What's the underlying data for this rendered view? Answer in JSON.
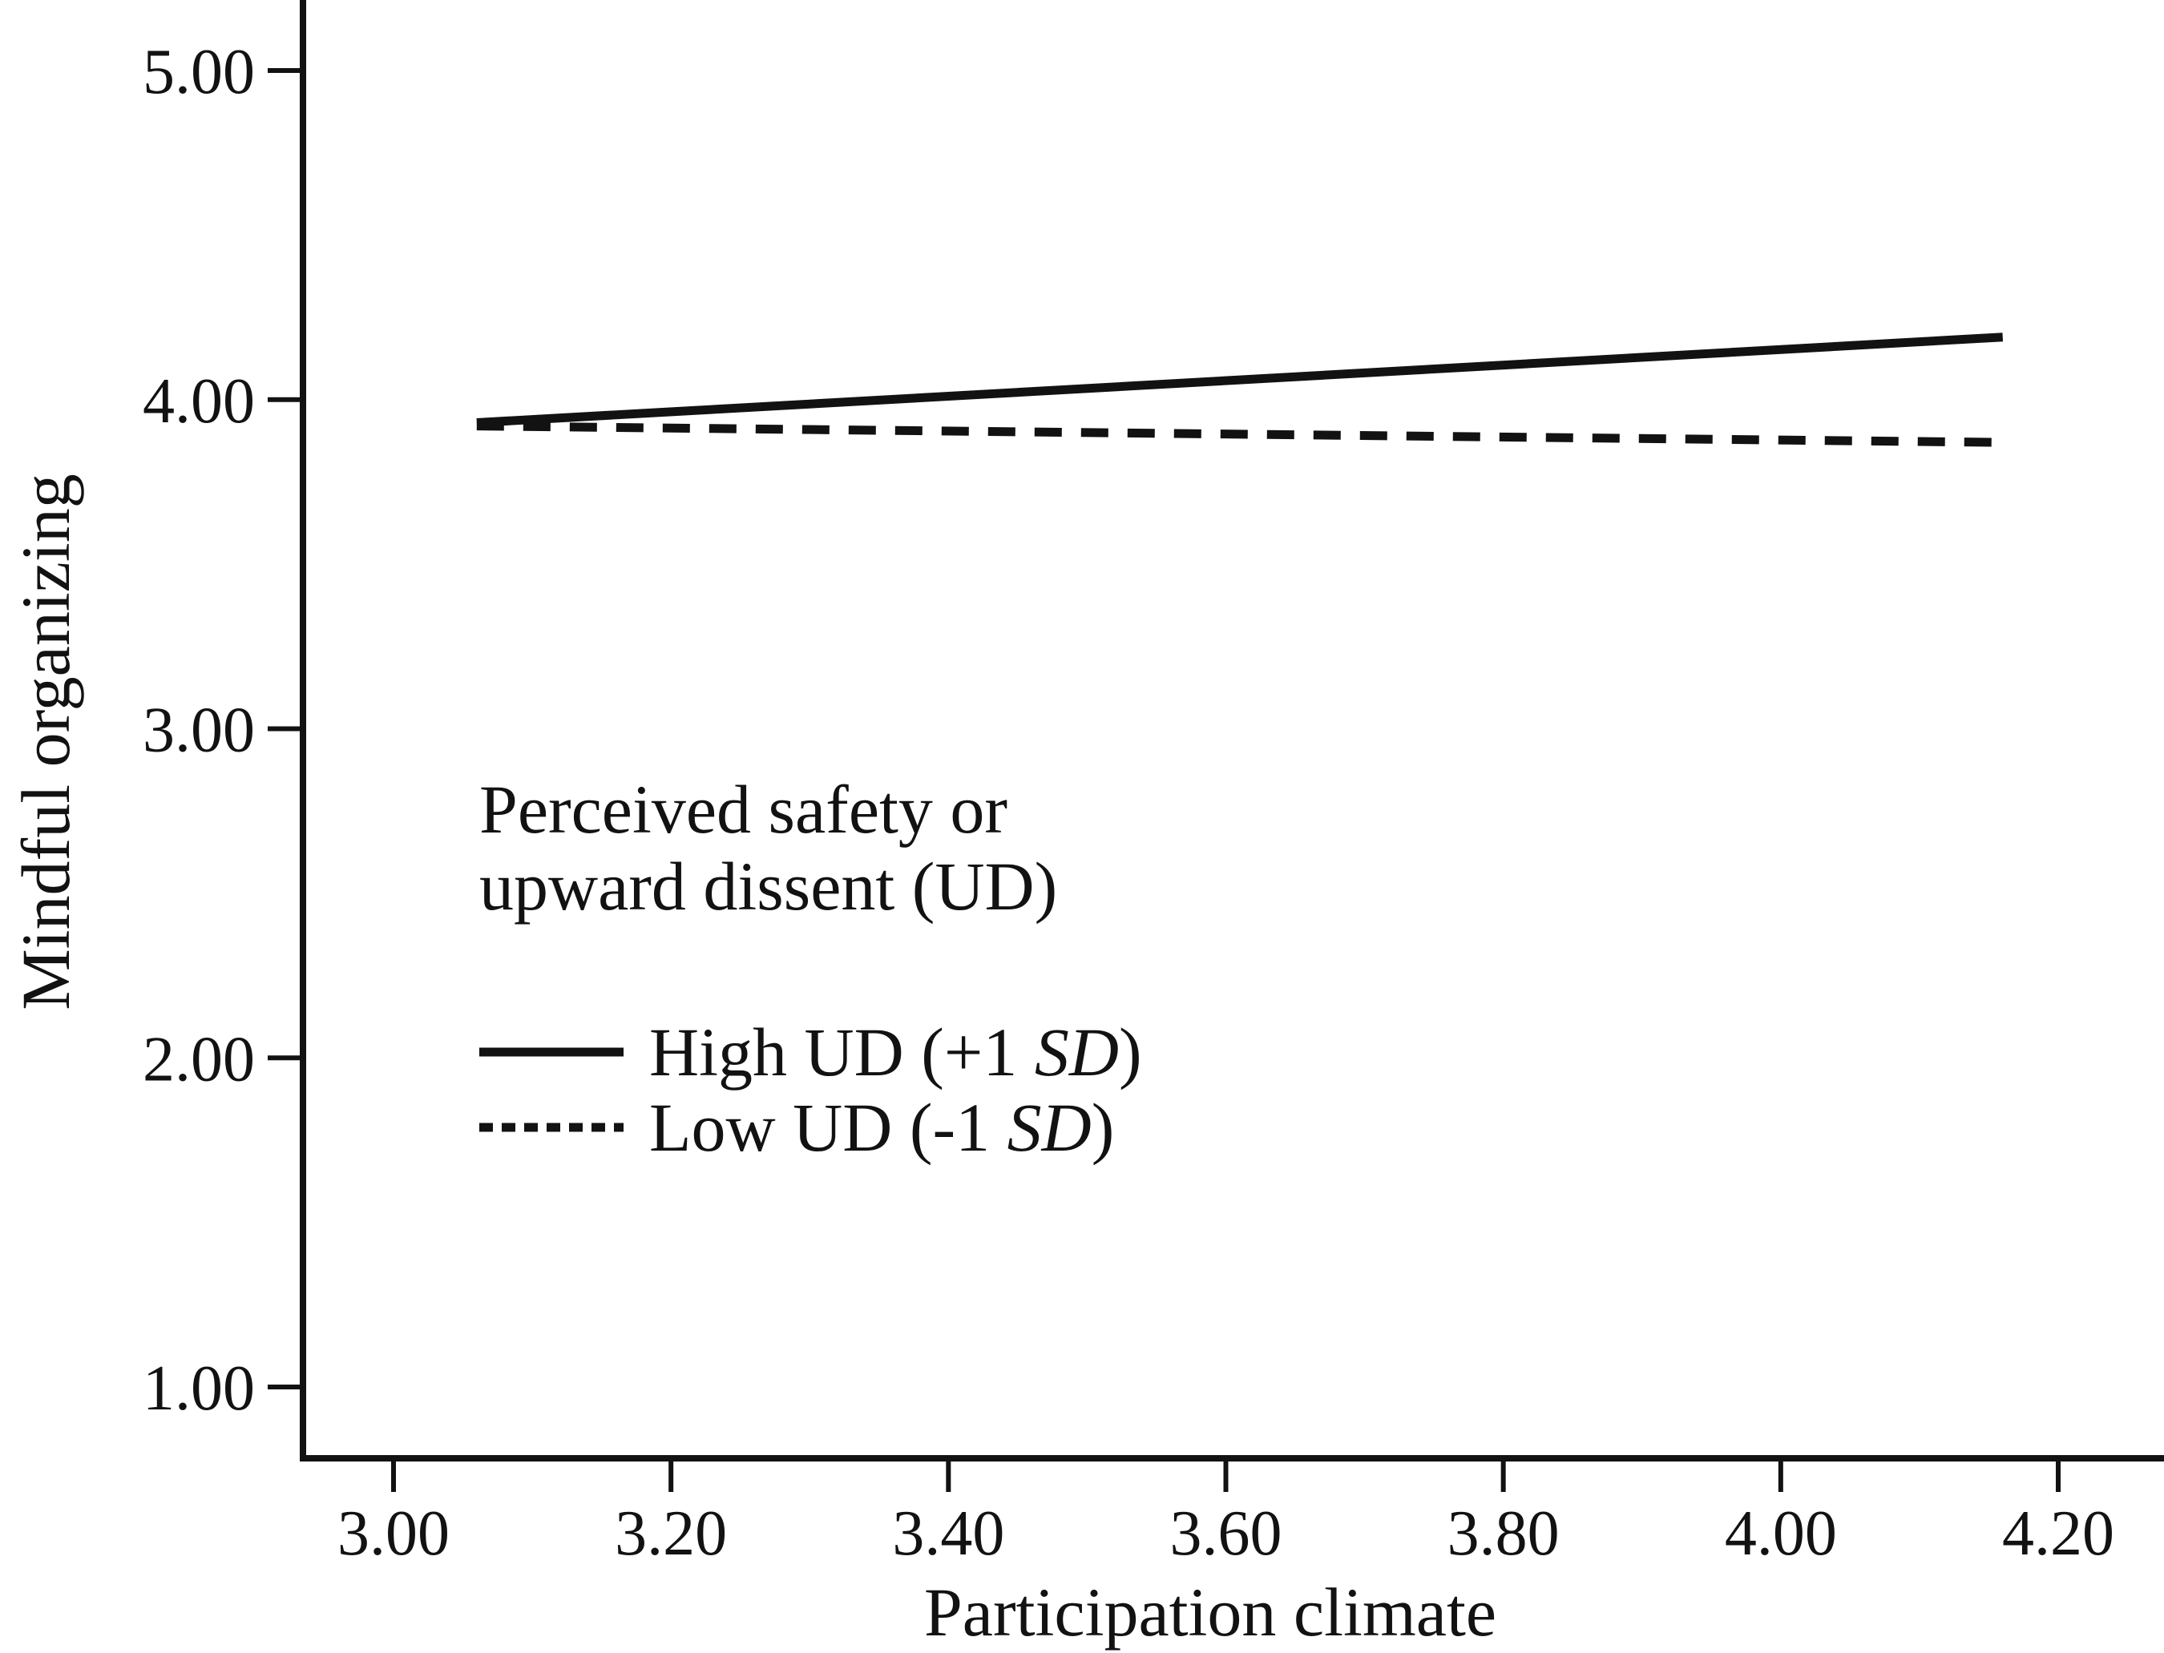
{
  "figure": {
    "background": "#ffffff",
    "ink": "#121212"
  },
  "chart_data": {
    "type": "line",
    "title": "",
    "xlabel": "Participation climate",
    "ylabel": "Mindful organizing",
    "grid": false,
    "frame": "left-bottom-spines-only",
    "xlim": [
      2.93,
      4.28
    ],
    "ylim": [
      0.78,
      5.21
    ],
    "x_ticks": {
      "values": [
        3.0,
        3.2,
        3.4,
        3.6,
        3.8,
        4.0,
        4.2
      ],
      "labels": [
        "3.00",
        "3.20",
        "3.40",
        "3.60",
        "3.80",
        "4.00",
        "4.20"
      ]
    },
    "y_ticks": {
      "values": [
        5.0,
        4.0,
        3.0,
        2.0,
        1.0
      ],
      "labels": [
        "5.00",
        "4.00",
        "3.00",
        "2.00",
        "1.00"
      ]
    },
    "series": [
      {
        "name": "High UD (+1 SD)",
        "style": "solid",
        "points": [
          [
            3.06,
            3.93
          ],
          [
            4.16,
            4.19
          ]
        ]
      },
      {
        "name": "Low UD (-1 SD)",
        "style": "dashed",
        "points": [
          [
            3.06,
            3.92
          ],
          [
            4.16,
            3.87
          ]
        ]
      }
    ],
    "legend": {
      "position": "inside-center-left",
      "title_lines": [
        "Perceived safety or",
        "upward dissent (UD)"
      ],
      "items": [
        {
          "style": "solid",
          "prefix": "High UD (+1 ",
          "italic": "SD",
          "suffix": ")"
        },
        {
          "style": "dashed",
          "prefix": "Low UD (-1 ",
          "italic": "SD",
          "suffix": ")"
        }
      ]
    }
  }
}
